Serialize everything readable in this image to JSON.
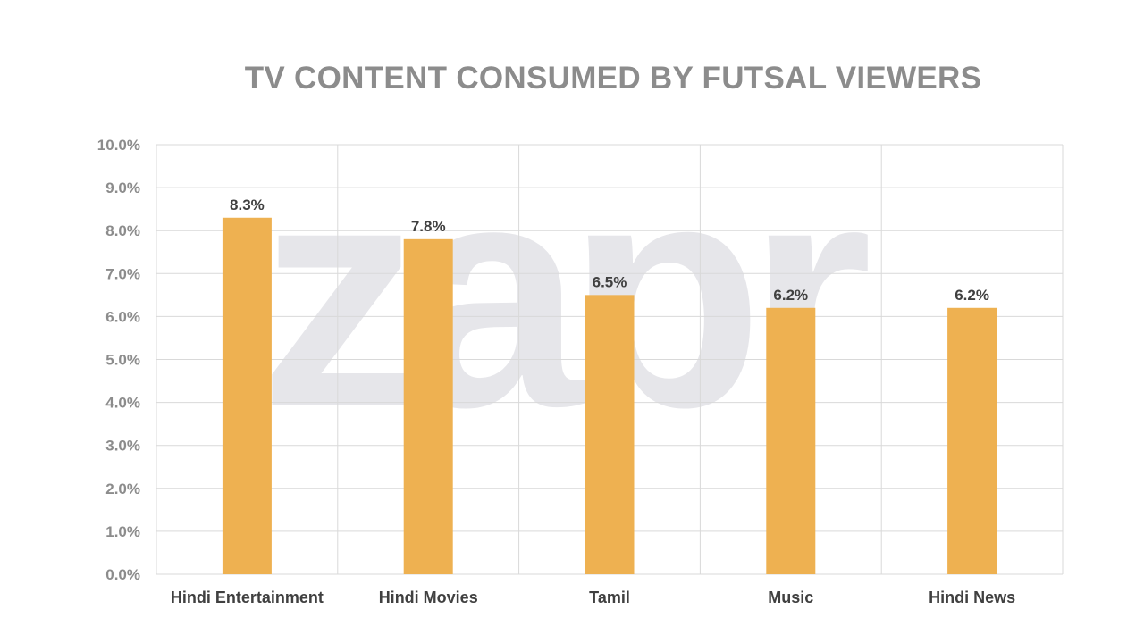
{
  "watermark": "zapr",
  "chart_data": {
    "type": "bar",
    "title": "TV CONTENT CONSUMED BY FUTSAL VIEWERS",
    "categories": [
      "Hindi Entertainment",
      "Hindi Movies",
      "Tamil",
      "Music",
      "Hindi News"
    ],
    "values": [
      8.3,
      7.8,
      6.5,
      6.2,
      6.2
    ],
    "data_labels": [
      "8.3%",
      "7.8%",
      "6.5%",
      "6.2%",
      "6.2%"
    ],
    "ylim": [
      0,
      10
    ],
    "y_ticks": [
      "0.0%",
      "1.0%",
      "2.0%",
      "3.0%",
      "4.0%",
      "5.0%",
      "6.0%",
      "7.0%",
      "8.0%",
      "9.0%",
      "10.0%"
    ],
    "bar_color": "#eeb151",
    "grid": true
  }
}
